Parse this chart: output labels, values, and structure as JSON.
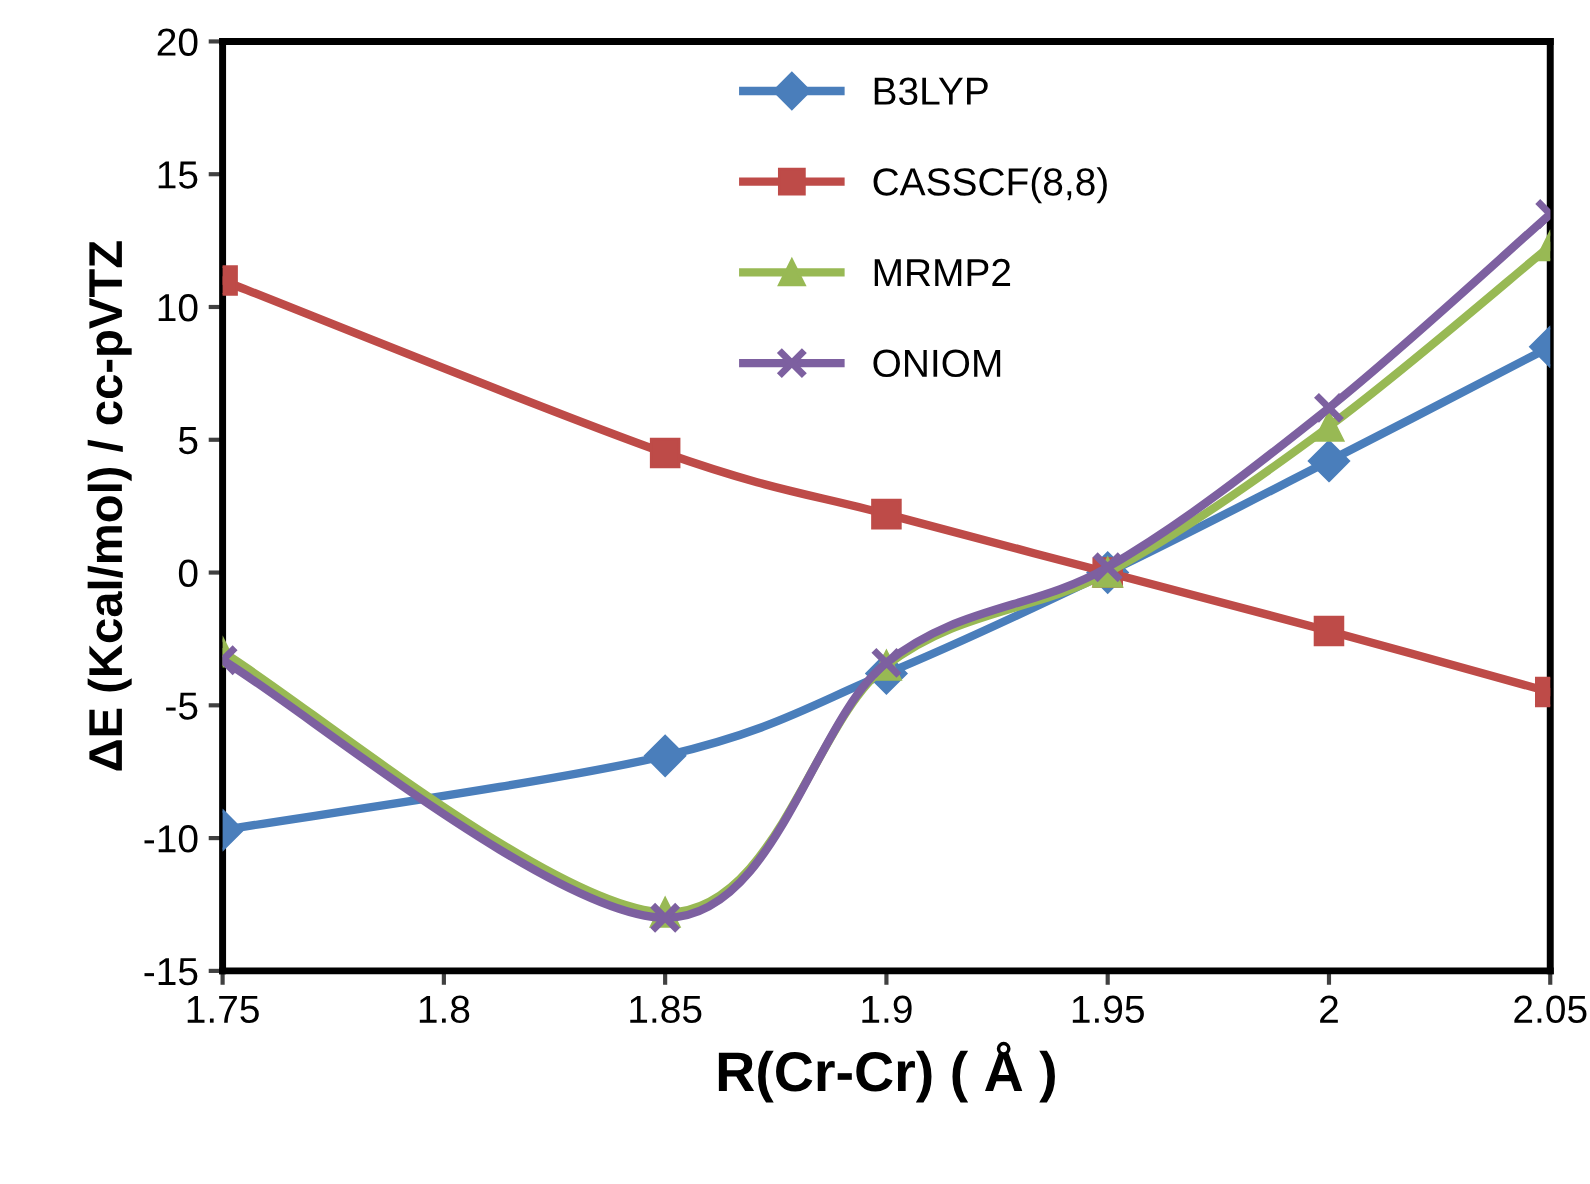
{
  "chart_data": {
    "type": "line",
    "xlabel": "R(Cr-Cr) ( Å )",
    "ylabel": "ΔE (Kcal/mol) / cc-pVTZ",
    "x": [
      1.75,
      1.85,
      1.9,
      1.95,
      2,
      2.05
    ],
    "series": [
      {
        "name": "B3LYP",
        "color": "#4a7ebb",
        "marker": "diamond",
        "values": [
          -9.7,
          -6.9,
          -3.8,
          0,
          4.2,
          8.5
        ]
      },
      {
        "name": "CASSCF(8,8)",
        "color": "#be4b48",
        "marker": "square",
        "values": [
          11,
          4.5,
          2.2,
          0,
          -2.2,
          -4.5
        ]
      },
      {
        "name": "MRMP2",
        "color": "#98b954",
        "marker": "triangle",
        "values": [
          -3,
          -12.8,
          -3.5,
          0,
          5.5,
          12.3
        ]
      },
      {
        "name": "ONIOM",
        "color": "#7d60a0",
        "marker": "cross",
        "values": [
          -3.3,
          -13,
          -3.4,
          0.2,
          6.2,
          13.5
        ]
      }
    ],
    "xlim": [
      1.75,
      2.05
    ],
    "xticks": [
      1.75,
      1.8,
      1.85,
      1.9,
      1.95,
      2,
      2.05
    ],
    "ylim": [
      -15,
      20
    ],
    "yticks": [
      -15,
      -10,
      -5,
      0,
      5,
      10,
      15,
      20
    ],
    "grid": false,
    "legend": "top",
    "line_style": "solid"
  }
}
